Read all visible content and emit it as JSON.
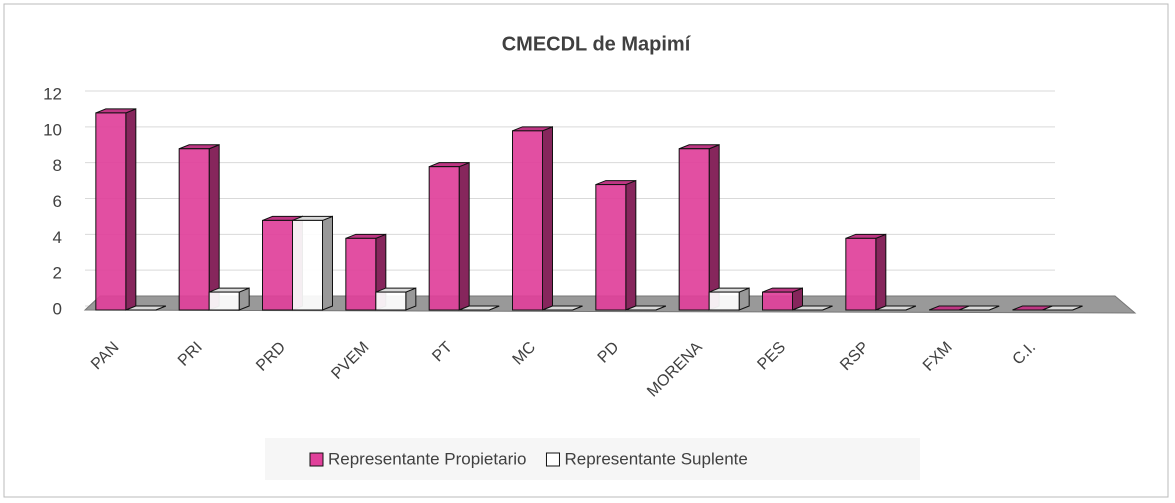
{
  "chart_data": {
    "type": "bar",
    "title": "CMECDL de Mapimí",
    "categories": [
      "PAN",
      "PRI",
      "PRD",
      "PVEM",
      "PT",
      "MC",
      "PD",
      "MORENA",
      "PES",
      "RSP",
      "FXM",
      "C.I."
    ],
    "series": [
      {
        "name": "Representante Propietario",
        "color": "#e0409a",
        "values": [
          11,
          9,
          5,
          4,
          8,
          10,
          7,
          9,
          1,
          4,
          0,
          0
        ]
      },
      {
        "name": "Representante Suplente",
        "color": "#ffffff",
        "values": [
          0,
          1,
          5,
          1,
          0,
          0,
          0,
          1,
          0,
          0,
          0,
          0
        ]
      }
    ],
    "ylim": [
      0,
      12
    ],
    "yticks": [
      0,
      2,
      4,
      6,
      8,
      10,
      12
    ],
    "grid": true,
    "legend": "bottom"
  }
}
